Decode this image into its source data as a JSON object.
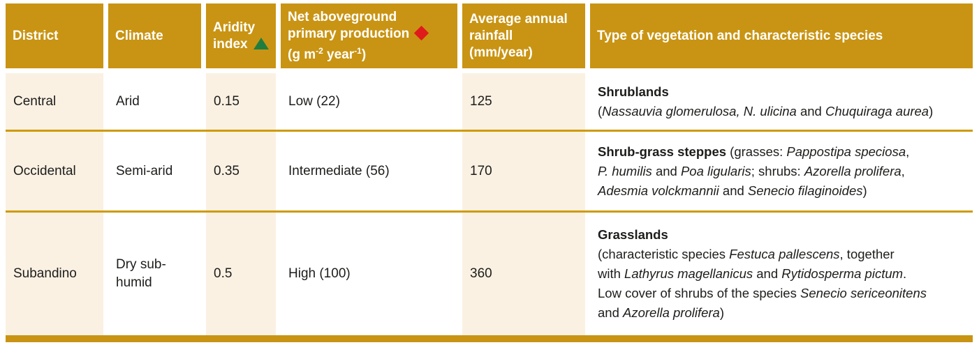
{
  "colors": {
    "header_gold": "#C99413",
    "row_divider_gold": "#CE9A06",
    "cell_cream": "#FAF1E3",
    "cell_white": "#FFFFFF",
    "header_text": "#FFFFFF",
    "body_text": "#1D1D1B",
    "triangle_green": "#1F7D40",
    "diamond_red": "#DF1B1B"
  },
  "icons": {
    "aridity_marker": "green-triangle-up",
    "npp_marker": "red-diamond"
  },
  "header": {
    "district": "District",
    "climate": "Climate",
    "aridity_line1": "Aridity",
    "aridity_line2": "index",
    "npp_line1": "Net aboveground",
    "npp_line2": "primary production",
    "npp_unit": [
      {
        "t": "(g m"
      },
      {
        "t": "-2",
        "sup": true
      },
      {
        "t": " year"
      },
      {
        "t": "-1",
        "sup": true
      },
      {
        "t": ")"
      }
    ],
    "rainfall_line1": "Average annual",
    "rainfall_line2": "rainfall",
    "rainfall_line3": "(mm/year)",
    "vegetation": "Type of vegetation and characteristic species"
  },
  "rows": [
    {
      "district": "Central",
      "climate": "Arid",
      "aridity_index": "0.15",
      "npp": "Low (22)",
      "rainfall": "125",
      "vegetation": [
        {
          "t": "Shrublands",
          "b": true
        },
        {
          "br": true
        },
        {
          "t": "("
        },
        {
          "t": "Nassauvia glomerulosa, N. ulicina",
          "i": true
        },
        {
          "t": " and "
        },
        {
          "t": "Chuquiraga aurea",
          "i": true
        },
        {
          "t": ")"
        }
      ]
    },
    {
      "district": "Occidental",
      "climate": "Semi-arid",
      "aridity_index": "0.35",
      "npp": "Intermediate (56)",
      "rainfall": "170",
      "vegetation": [
        {
          "t": "Shrub-grass steppes",
          "b": true
        },
        {
          "t": " (grasses: "
        },
        {
          "t": "Pappostipa speciosa",
          "i": true
        },
        {
          "t": ","
        },
        {
          "br": true
        },
        {
          "t": "P. humilis",
          "i": true
        },
        {
          "t": " and "
        },
        {
          "t": "Poa ligularis",
          "i": true
        },
        {
          "t": "; shrubs: "
        },
        {
          "t": "Azorella prolifera",
          "i": true
        },
        {
          "t": ","
        },
        {
          "br": true
        },
        {
          "t": "Adesmia volckmannii",
          "i": true
        },
        {
          "t": " and "
        },
        {
          "t": "Senecio filaginoides",
          "i": true
        },
        {
          "t": ")"
        }
      ]
    },
    {
      "district": "Subandino",
      "climate": "Dry sub-humid",
      "aridity_index": "0.5",
      "npp": "High (100)",
      "rainfall": "360",
      "vegetation": [
        {
          "t": "Grasslands",
          "b": true
        },
        {
          "br": true
        },
        {
          "t": "(characteristic species "
        },
        {
          "t": "Festuca pallescens",
          "i": true
        },
        {
          "t": ", together"
        },
        {
          "br": true
        },
        {
          "t": "with "
        },
        {
          "t": "Lathyrus magellanicus",
          "i": true
        },
        {
          "t": " and "
        },
        {
          "t": "Rytidosperma pictum",
          "i": true
        },
        {
          "t": "."
        },
        {
          "br": true
        },
        {
          "t": "Low cover of shrubs of the species "
        },
        {
          "t": "Senecio sericeonitens",
          "i": true
        },
        {
          "br": true
        },
        {
          "t": "and "
        },
        {
          "t": "Azorella prolifera",
          "i": true
        },
        {
          "t": ")"
        }
      ]
    }
  ]
}
